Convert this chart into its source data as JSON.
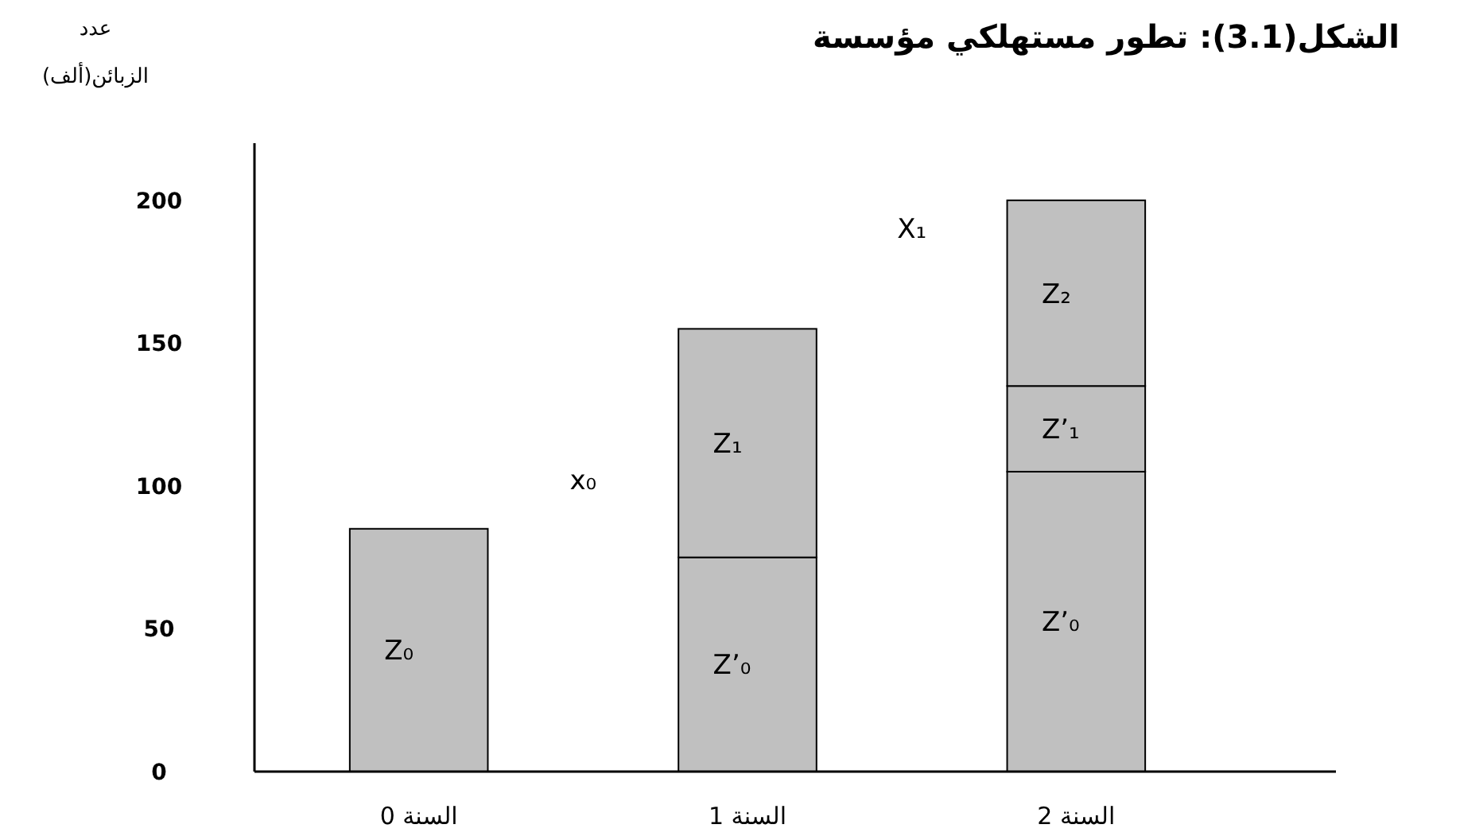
{
  "chart_data": {
    "type": "bar",
    "stacked": true,
    "title": "الشكل(3.1): تطور مستهلكي مؤسسة",
    "ylabel": "عدد الزبائن(ألف)",
    "categories": [
      "السنة 0",
      "السنة 1",
      "السنة 2"
    ],
    "series": [
      {
        "color": "#c0c0c0",
        "values": [
          85,
          75,
          105
        ]
      },
      {
        "color": "#c0c0c0",
        "values": [
          null,
          80,
          30
        ]
      },
      {
        "color": "#c0c0c0",
        "values": [
          null,
          null,
          65
        ]
      }
    ],
    "ylim": [
      0,
      220
    ],
    "yticks": [
      0,
      50,
      100,
      150,
      200
    ],
    "grid": false,
    "annotations": [
      "Z₀",
      "Z’₀",
      "Z₁",
      "Z’₀",
      "Z’₁",
      "Z₂",
      "x₀",
      "X₁"
    ]
  }
}
